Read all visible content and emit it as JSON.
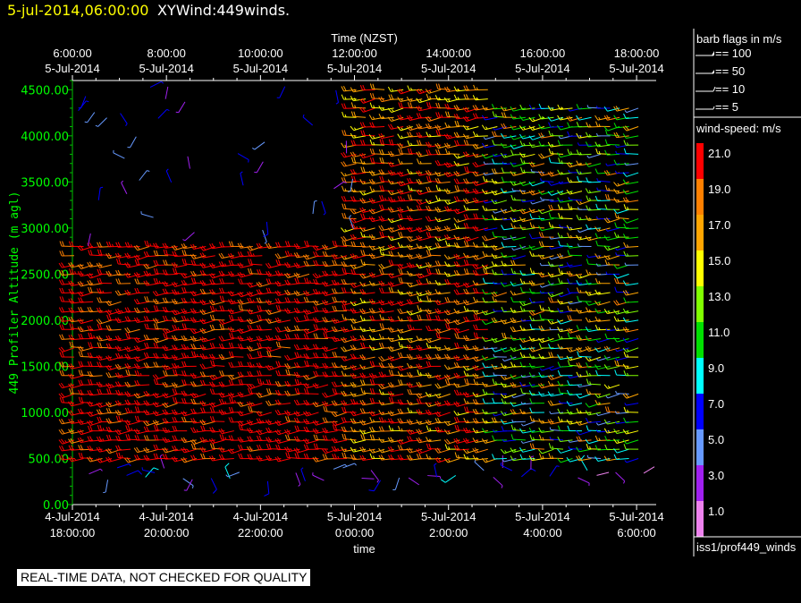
{
  "header": {
    "date": "5-jul-2014,06:00:00",
    "title": "XYWind:449winds."
  },
  "notice": "REAL-TIME DATA, NOT CHECKED FOR QUALITY",
  "legend_barbs": {
    "title": "barb flags in m/s",
    "items": [
      "== 100",
      "== 50",
      "== 10",
      "== 5"
    ]
  },
  "legend_colors": {
    "title": "wind-speed: m/s",
    "levels": [
      {
        "label": "21.0",
        "color": "#ff0000"
      },
      {
        "label": "19.0",
        "color": "#ff8000"
      },
      {
        "label": "17.0",
        "color": "#ffa500"
      },
      {
        "label": "15.0",
        "color": "#ffff00"
      },
      {
        "label": "13.0",
        "color": "#80ff00"
      },
      {
        "label": "11.0",
        "color": "#00e000"
      },
      {
        "label": "9.0",
        "color": "#00ffff"
      },
      {
        "label": "7.0",
        "color": "#0000ff"
      },
      {
        "label": "5.0",
        "color": "#6699ff"
      },
      {
        "label": "3.0",
        "color": "#a020f0"
      },
      {
        "label": "1.0",
        "color": "#ee82ee"
      }
    ]
  },
  "source_label": "iss1/prof449_winds",
  "chart_data": {
    "type": "scatter",
    "subtype": "wind-barb",
    "top_axis_title": "Time (NZST)",
    "top_ticks": [
      {
        "time": "6:00:00",
        "date": "5-Jul-2014"
      },
      {
        "time": "8:00:00",
        "date": "5-Jul-2014"
      },
      {
        "time": "10:00:00",
        "date": "5-Jul-2014"
      },
      {
        "time": "12:00:00",
        "date": "5-Jul-2014"
      },
      {
        "time": "14:00:00",
        "date": "5-Jul-2014"
      },
      {
        "time": "16:00:00",
        "date": "5-Jul-2014"
      },
      {
        "time": "18:00:00",
        "date": "5-Jul-2014"
      }
    ],
    "xlabel": "time",
    "bottom_ticks": [
      {
        "date": "4-Jul-2014",
        "time": "18:00:00"
      },
      {
        "date": "4-Jul-2014",
        "time": "20:00:00"
      },
      {
        "date": "4-Jul-2014",
        "time": "22:00:00"
      },
      {
        "date": "5-Jul-2014",
        "time": "0:00:00"
      },
      {
        "date": "5-Jul-2014",
        "time": "2:00:00"
      },
      {
        "date": "5-Jul-2014",
        "time": "4:00:00"
      },
      {
        "date": "5-Jul-2014",
        "time": "6:00:00"
      }
    ],
    "xlim": [
      "4-Jul-2014 18:00:00",
      "5-Jul-2014 06:25:00"
    ],
    "ylabel": "449 Profiler Altitude (m agl)",
    "yticks": [
      "0.00",
      "500.00",
      "1000.00",
      "1500.00",
      "2000.00",
      "2500.00",
      "3000.00",
      "3500.00",
      "4000.00",
      "4500.00"
    ],
    "ylim": [
      0,
      4600
    ],
    "wind_field": {
      "time_step_minutes": 12,
      "altitude_step_m": 100,
      "speed_units": "m/s",
      "speed_by_period": [
        {
          "from": "4-Jul-2014 18:00",
          "to": "5-Jul-2014 00:00",
          "speed_range": [
            19,
            23
          ],
          "top_m": 2800
        },
        {
          "from": "5-Jul-2014 00:00",
          "to": "5-Jul-2014 03:00",
          "speed_range": [
            15,
            23
          ],
          "top_m": 4500
        },
        {
          "from": "5-Jul-2014 03:00",
          "to": "5-Jul-2014 06:00",
          "speed_range": [
            5,
            19
          ],
          "top_m": 4300
        }
      ],
      "low_level_speed_range": [
        1,
        9
      ]
    }
  }
}
